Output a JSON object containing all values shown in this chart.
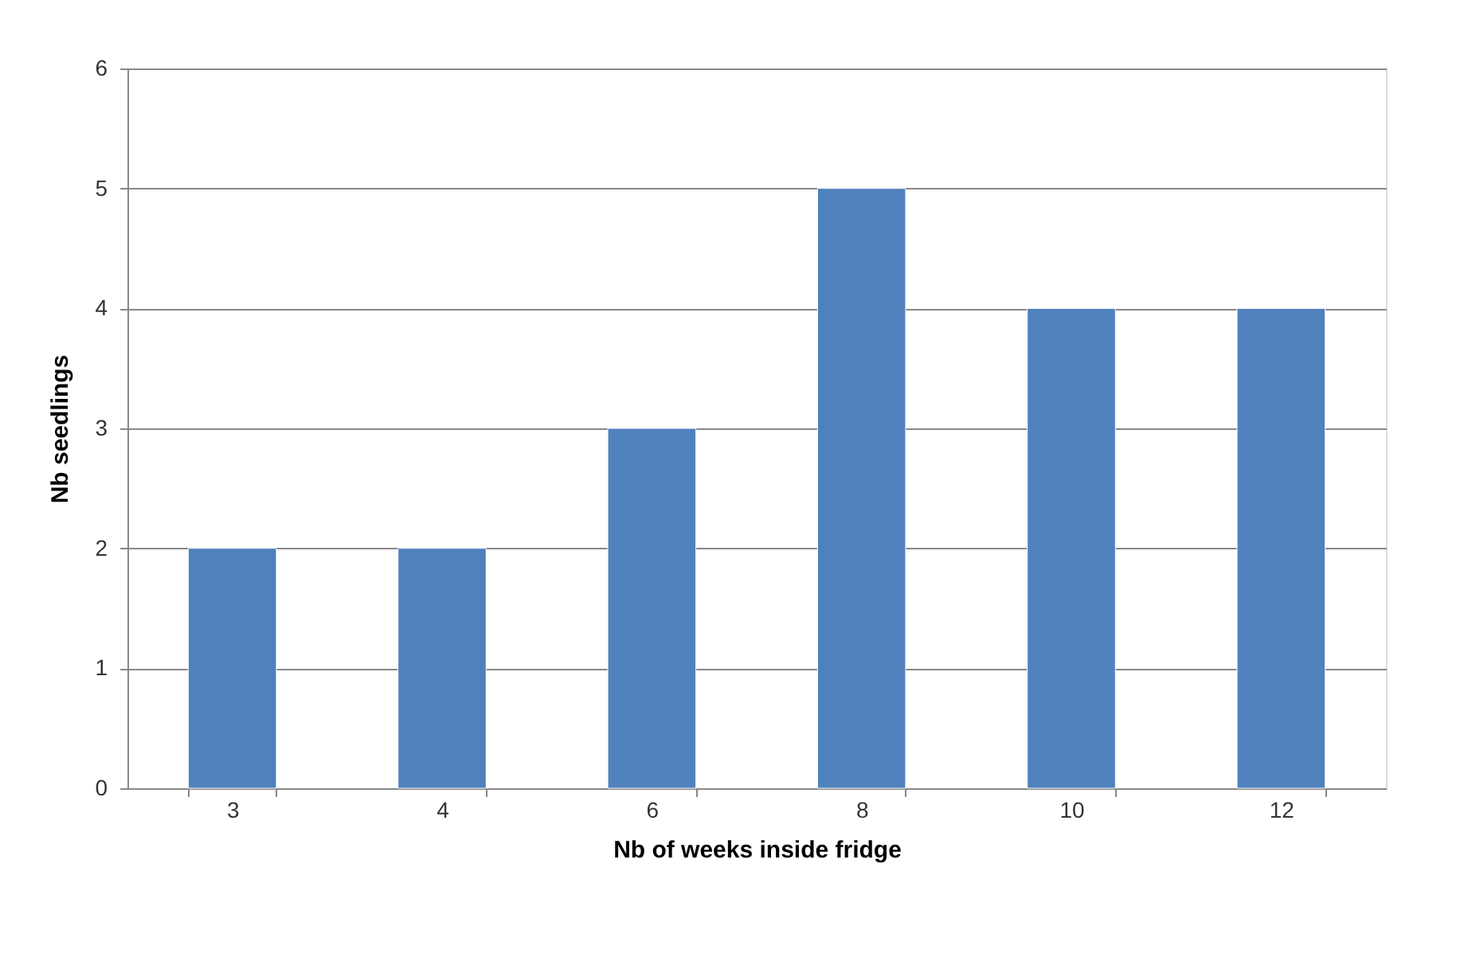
{
  "chart_data": {
    "type": "bar",
    "xlabel": "Nb of weeks inside fridge",
    "ylabel": "Nb seedlings",
    "categories": [
      "3",
      "4",
      "6",
      "8",
      "10",
      "12"
    ],
    "values": [
      2,
      2,
      3,
      5,
      4,
      4
    ],
    "color": "#4f81bd",
    "ylim": [
      0,
      6
    ],
    "yticks": [
      0,
      1,
      2,
      3,
      4,
      5,
      6
    ],
    "grid": "y"
  }
}
